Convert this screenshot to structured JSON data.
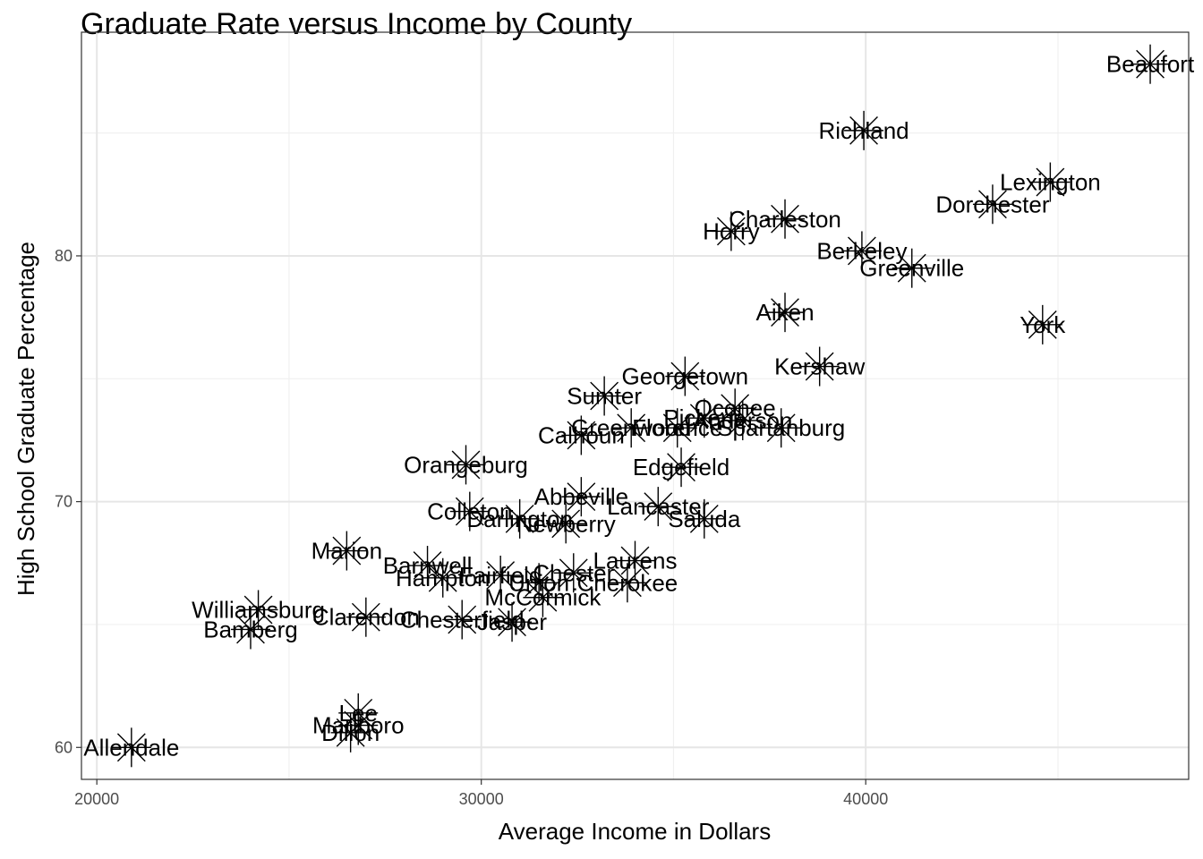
{
  "chart_data": {
    "type": "scatter",
    "title": "Graduate Rate versus Income by County",
    "xlabel": "Average Income in Dollars",
    "ylabel": "High School Graduate Percentage",
    "xlim": [
      19600,
      48400
    ],
    "ylim": [
      58.7,
      89.1
    ],
    "xticks": [
      20000,
      30000,
      40000
    ],
    "yticks": [
      60,
      70,
      80
    ],
    "xticklabels": [
      "20000",
      "30000",
      "40000"
    ],
    "yticklabels": [
      "60",
      "70",
      "80"
    ],
    "grid": true,
    "marker": "asterisk",
    "points": [
      {
        "label": "Beaufort",
        "x": 47400,
        "y": 87.8
      },
      {
        "label": "Richland",
        "x": 39950,
        "y": 85.1
      },
      {
        "label": "Lexington",
        "x": 44800,
        "y": 83.0
      },
      {
        "label": "Dorchester",
        "x": 43300,
        "y": 82.1
      },
      {
        "label": "Charleston",
        "x": 37900,
        "y": 81.5
      },
      {
        "label": "Horry",
        "x": 36500,
        "y": 81.0
      },
      {
        "label": "Berkeley",
        "x": 39900,
        "y": 80.2
      },
      {
        "label": "Greenville",
        "x": 41200,
        "y": 79.5
      },
      {
        "label": "Aiken",
        "x": 37900,
        "y": 77.7
      },
      {
        "label": "York",
        "x": 44600,
        "y": 77.2
      },
      {
        "label": "Kershaw",
        "x": 38800,
        "y": 75.5
      },
      {
        "label": "Georgetown",
        "x": 35300,
        "y": 75.1
      },
      {
        "label": "Sumter",
        "x": 33200,
        "y": 74.3
      },
      {
        "label": "Oconee",
        "x": 36600,
        "y": 73.8
      },
      {
        "label": "Pickens",
        "x": 35800,
        "y": 73.4
      },
      {
        "label": "Anderson",
        "x": 36800,
        "y": 73.3
      },
      {
        "label": "Greenwood",
        "x": 33900,
        "y": 73.0
      },
      {
        "label": "Florence",
        "x": 35100,
        "y": 73.0
      },
      {
        "label": "Spartanburg",
        "x": 37800,
        "y": 73.0
      },
      {
        "label": "Calhoun",
        "x": 32600,
        "y": 72.7
      },
      {
        "label": "Edgefield",
        "x": 35200,
        "y": 71.4
      },
      {
        "label": "Orangeburg",
        "x": 29600,
        "y": 71.5
      },
      {
        "label": "Abbeville",
        "x": 32600,
        "y": 70.2
      },
      {
        "label": "Lancaster",
        "x": 34600,
        "y": 69.8
      },
      {
        "label": "Colleton",
        "x": 29700,
        "y": 69.6
      },
      {
        "label": "Darlington",
        "x": 31000,
        "y": 69.3
      },
      {
        "label": "Newberry",
        "x": 32200,
        "y": 69.1
      },
      {
        "label": "Saluda",
        "x": 35800,
        "y": 69.3
      },
      {
        "label": "Marion",
        "x": 26500,
        "y": 68.0
      },
      {
        "label": "Laurens",
        "x": 34000,
        "y": 67.6
      },
      {
        "label": "Barnwell",
        "x": 28600,
        "y": 67.4
      },
      {
        "label": "Hampton",
        "x": 29000,
        "y": 66.9
      },
      {
        "label": "Fairfield",
        "x": 30500,
        "y": 67.0
      },
      {
        "label": "Union",
        "x": 31500,
        "y": 66.7
      },
      {
        "label": "Chester",
        "x": 32400,
        "y": 67.1
      },
      {
        "label": "Cherokee",
        "x": 33800,
        "y": 66.7
      },
      {
        "label": "McCormick",
        "x": 31600,
        "y": 66.1
      },
      {
        "label": "Williamsburg",
        "x": 24200,
        "y": 65.6
      },
      {
        "label": "Bamberg",
        "x": 24000,
        "y": 64.8
      },
      {
        "label": "Clarendon",
        "x": 27000,
        "y": 65.3
      },
      {
        "label": "Chesterfield",
        "x": 29500,
        "y": 65.2
      },
      {
        "label": "Jasper",
        "x": 30800,
        "y": 65.1
      },
      {
        "label": "Lee",
        "x": 26800,
        "y": 61.4
      },
      {
        "label": "Marlboro",
        "x": 26800,
        "y": 60.9
      },
      {
        "label": "Dillon",
        "x": 26600,
        "y": 60.6
      },
      {
        "label": "Allendale",
        "x": 20900,
        "y": 60.0
      }
    ]
  }
}
